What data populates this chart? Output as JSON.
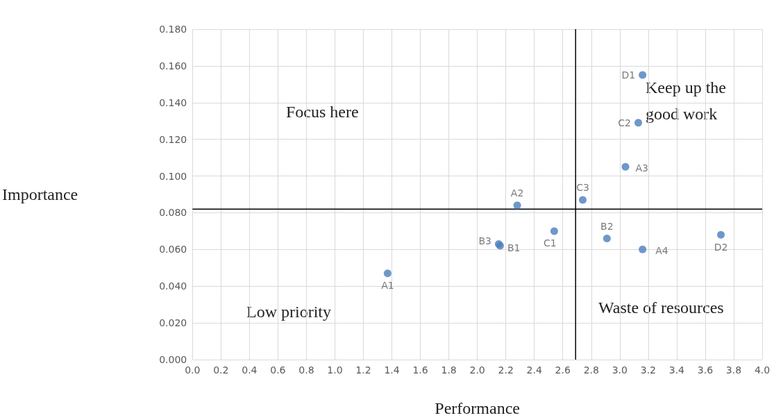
{
  "chart_data": {
    "type": "scatter",
    "xlabel": "Performance",
    "ylabel": "Importance",
    "series": [
      {
        "name": "A1",
        "color": "#4a7ebb",
        "x": [
          1.37
        ],
        "values": [
          0.047
        ]
      },
      {
        "name": "A2",
        "color": "#4a7ebb",
        "x": [
          2.28
        ],
        "values": [
          0.084
        ]
      },
      {
        "name": "B3",
        "color": "#4a7ebb",
        "x": [
          2.15
        ],
        "values": [
          0.063
        ]
      },
      {
        "name": "B1",
        "color": "#4a7ebb",
        "x": [
          2.16
        ],
        "values": [
          0.062
        ]
      },
      {
        "name": "C1",
        "color": "#4a7ebb",
        "x": [
          2.54
        ],
        "values": [
          0.07
        ]
      },
      {
        "name": "C3",
        "color": "#4a7ebb",
        "x": [
          2.74
        ],
        "values": [
          0.087
        ]
      },
      {
        "name": "B2",
        "color": "#4a7ebb",
        "x": [
          2.91
        ],
        "values": [
          0.066
        ]
      },
      {
        "name": "A3",
        "color": "#4a7ebb",
        "x": [
          3.04
        ],
        "values": [
          0.105
        ]
      },
      {
        "name": "A4",
        "color": "#4a7ebb",
        "x": [
          3.16
        ],
        "values": [
          0.06
        ]
      },
      {
        "name": "C2",
        "color": "#4a7ebb",
        "x": [
          3.13
        ],
        "values": [
          0.129
        ]
      },
      {
        "name": "D1",
        "color": "#4a7ebb",
        "x": [
          3.16
        ],
        "values": [
          0.155
        ]
      },
      {
        "name": "D2",
        "color": "#4a7ebb",
        "x": [
          3.71
        ],
        "values": [
          0.068
        ]
      }
    ],
    "xlim": [
      0,
      4
    ],
    "xticks": [
      {
        "value": 0,
        "label": "0.0"
      },
      {
        "value": 0.2,
        "label": "0.2"
      },
      {
        "value": 0.4,
        "label": "0.4"
      },
      {
        "value": 0.6,
        "label": "0.6"
      },
      {
        "value": 0.8,
        "label": "0.8"
      },
      {
        "value": 1,
        "label": "1.0"
      },
      {
        "value": 1.2,
        "label": "1.2"
      },
      {
        "value": 1.4,
        "label": "1.4"
      },
      {
        "value": 1.6,
        "label": "1.6"
      },
      {
        "value": 1.8,
        "label": "1.8"
      },
      {
        "value": 2,
        "label": "2.0"
      },
      {
        "value": 2.2,
        "label": "2.2"
      },
      {
        "value": 2.4,
        "label": "2.4"
      },
      {
        "value": 2.6,
        "label": "2.6"
      },
      {
        "value": 2.8,
        "label": "2.8"
      },
      {
        "value": 3,
        "label": "3.0"
      },
      {
        "value": 3.2,
        "label": "3.2"
      },
      {
        "value": 3.4,
        "label": "3.4"
      },
      {
        "value": 3.6,
        "label": "3.6"
      },
      {
        "value": 3.8,
        "label": "3.8"
      },
      {
        "value": 4,
        "label": "4.0"
      }
    ],
    "ylim": [
      0,
      0.18
    ],
    "yticks": [
      {
        "value": 0,
        "label": "0.000"
      },
      {
        "value": 0.02,
        "label": "0.020"
      },
      {
        "value": 0.04,
        "label": "0.040"
      },
      {
        "value": 0.06,
        "label": "0.060"
      },
      {
        "value": 0.08,
        "label": "0.080"
      },
      {
        "value": 0.1,
        "label": "0.100"
      },
      {
        "value": 0.12,
        "label": "0.120"
      },
      {
        "value": 0.14,
        "label": "0.140"
      },
      {
        "value": 0.16,
        "label": "0.160"
      },
      {
        "value": 0.18,
        "label": "0.180"
      }
    ],
    "ref_lines": [
      {
        "axis": "x",
        "value": 2.69,
        "color": "#000000"
      },
      {
        "axis": "y",
        "value": 0.082,
        "color": "#000000"
      }
    ],
    "annotations": [
      "Focus here",
      "Keep up the good work",
      "Low priority",
      "Waste of resources"
    ],
    "grid": true,
    "marker": "circle",
    "legend": false
  }
}
